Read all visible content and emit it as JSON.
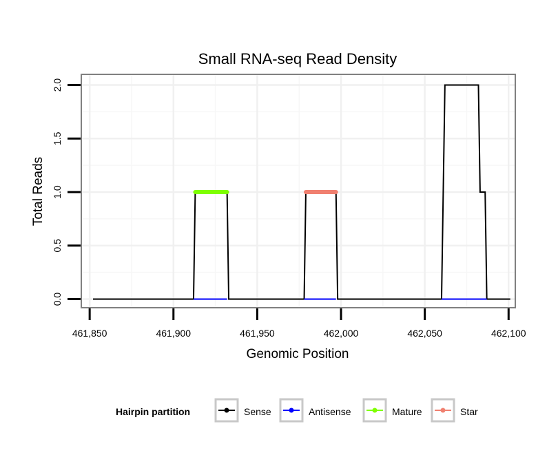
{
  "chart_data": {
    "type": "line",
    "title": "Small RNA-seq Read Density",
    "xlabel": "Genomic Position",
    "ylabel": "Total Reads",
    "xlim": [
      461845,
      462104
    ],
    "ylim": [
      -0.08,
      2.1
    ],
    "x_ticks": [
      461850,
      461900,
      461950,
      462000,
      462050,
      462100
    ],
    "x_tick_labels": [
      "461,850",
      "461,900",
      "461,950",
      "462,000",
      "462,050",
      "462,100"
    ],
    "y_ticks": [
      0.0,
      0.5,
      1.0,
      1.5,
      2.0
    ],
    "y_tick_labels": [
      "0.0",
      "0.5",
      "1.0",
      "1.5",
      "2.0"
    ],
    "grid": true,
    "legend": {
      "title": "Hairpin partition",
      "position": "bottom",
      "entries": [
        "Sense",
        "Antisense",
        "Mature",
        "Star"
      ]
    },
    "series": [
      {
        "name": "Sense",
        "color": "#000000",
        "x": [
          461852,
          461912,
          461913,
          461932,
          461933,
          461978,
          461979,
          461997,
          461998,
          462060,
          462062,
          462082,
          462083,
          462086,
          462087,
          462101
        ],
        "y": [
          0,
          0,
          1,
          1,
          0,
          0,
          1,
          1,
          0,
          0,
          2,
          2,
          1,
          1,
          0,
          0
        ]
      },
      {
        "name": "Antisense",
        "color": "#0000ff",
        "x": [
          461912,
          461932,
          461978,
          461997,
          462060,
          462087
        ],
        "y": [
          0,
          0,
          0,
          0,
          0,
          0
        ],
        "segments": [
          [
            461912,
            461932
          ],
          [
            461978,
            461997
          ],
          [
            462060,
            462087
          ]
        ]
      },
      {
        "name": "Mature",
        "color": "#7fff00",
        "x": [
          461913,
          461932
        ],
        "y": [
          1,
          1
        ]
      },
      {
        "name": "Star",
        "color": "#f08070",
        "x": [
          461979,
          461997
        ],
        "y": [
          1,
          1
        ]
      }
    ]
  }
}
